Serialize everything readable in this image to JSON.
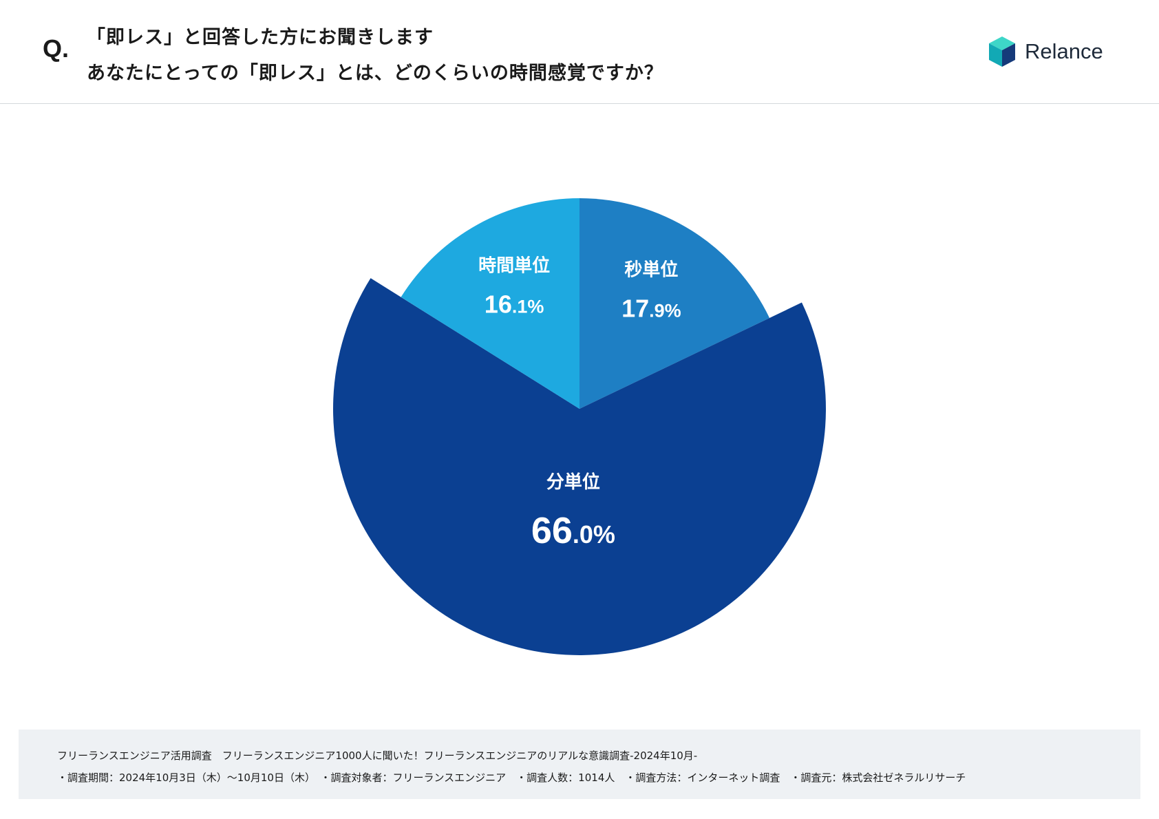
{
  "header": {
    "q_mark": "Q.",
    "question_line1": "「即レス」と回答した方にお聞きします",
    "question_line2": "あなたにとっての「即レス」とは、どのくらいの時間感覚ですか？",
    "logo_text": "Relance"
  },
  "chart_data": {
    "type": "pie",
    "start_angle_deg": 0,
    "direction": "clockwise",
    "slices": [
      {
        "label": "秒単位",
        "value": 17.9,
        "value_int": "17",
        "value_dec": ".9%",
        "color": "#1e7fc4",
        "exploded": false
      },
      {
        "label": "分単位",
        "value": 66.0,
        "value_int": "66",
        "value_dec": ".0%",
        "color": "#0b4092",
        "exploded": true
      },
      {
        "label": "時間単位",
        "value": 16.1,
        "value_int": "16",
        "value_dec": ".1%",
        "color": "#1ea9e0",
        "exploded": false
      }
    ]
  },
  "footer": {
    "line1": "フリーランスエンジニア活用調査　フリーランスエンジニア1000人に聞いた！フリーランスエンジニアのリアルな意識調査-2024年10月-",
    "line2": "・調査期間：2024年10月3日（木）〜10月10日（木）　・調査対象者：フリーランスエンジニア　・調査人数：1014人　・調査方法：インターネット調査　・調査元：株式会社ゼネラルリサーチ"
  },
  "colors": {
    "logo_teal_light": "#3ed6c8",
    "logo_teal_dark": "#12a9b5",
    "logo_navy": "#153a7a"
  }
}
